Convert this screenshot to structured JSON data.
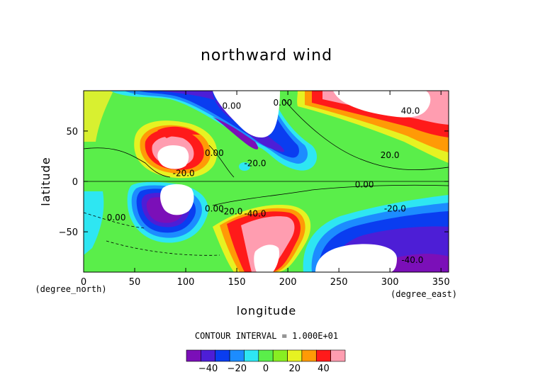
{
  "title": "northward wind",
  "contour_interval": "CONTOUR INTERVAL = 1.000E+01",
  "chart_data": {
    "type": "heatmap",
    "title": "northward wind",
    "xlabel": "longitude",
    "ylabel": "latitude",
    "x_units": "(degree_east)",
    "y_units": "(degree_north)",
    "xlim": [
      0,
      357.5
    ],
    "ylim": [
      -90,
      90
    ],
    "x_ticks": [
      0,
      50,
      100,
      150,
      200,
      250,
      300,
      350
    ],
    "y_ticks": [
      -50,
      0,
      50
    ],
    "contour_labels": [
      {
        "text": "0.00",
        "lon": 145,
        "lat": 75
      },
      {
        "text": "0.00",
        "lon": 195,
        "lat": 78
      },
      {
        "text": "0.00",
        "lon": 128,
        "lat": 28
      },
      {
        "text": "-20.0",
        "lon": 168,
        "lat": 18
      },
      {
        "text": "-20.0",
        "lon": 98,
        "lat": 8
      },
      {
        "text": "40.0",
        "lon": 320,
        "lat": 70
      },
      {
        "text": "20.0",
        "lon": 300,
        "lat": 26
      },
      {
        "text": "0.00",
        "lon": 275,
        "lat": -3
      },
      {
        "text": "0.00",
        "lon": 32,
        "lat": -36
      },
      {
        "text": "0.00",
        "lon": 128,
        "lat": -27
      },
      {
        "text": "-20.0",
        "lon": 145,
        "lat": -30
      },
      {
        "text": "-40.0",
        "lon": 168,
        "lat": -32
      },
      {
        "text": "-20.0",
        "lon": 305,
        "lat": -27
      },
      {
        "text": "-40.0",
        "lon": 322,
        "lat": -78
      }
    ],
    "colorbar": {
      "min": -50,
      "max": 50,
      "step": 10,
      "tick_labels": [
        "-40",
        "-20",
        "0",
        "20",
        "40"
      ],
      "colors": [
        "#7b0fb8",
        "#4d1ed6",
        "#0a3df0",
        "#1c8cff",
        "#2ee6f2",
        "#5aee4a",
        "#88ee22",
        "#e6f222",
        "#ff9a06",
        "#ff1a1a",
        "#ff9db0"
      ]
    },
    "grid": false,
    "legend": "bottom-center colorbar"
  }
}
